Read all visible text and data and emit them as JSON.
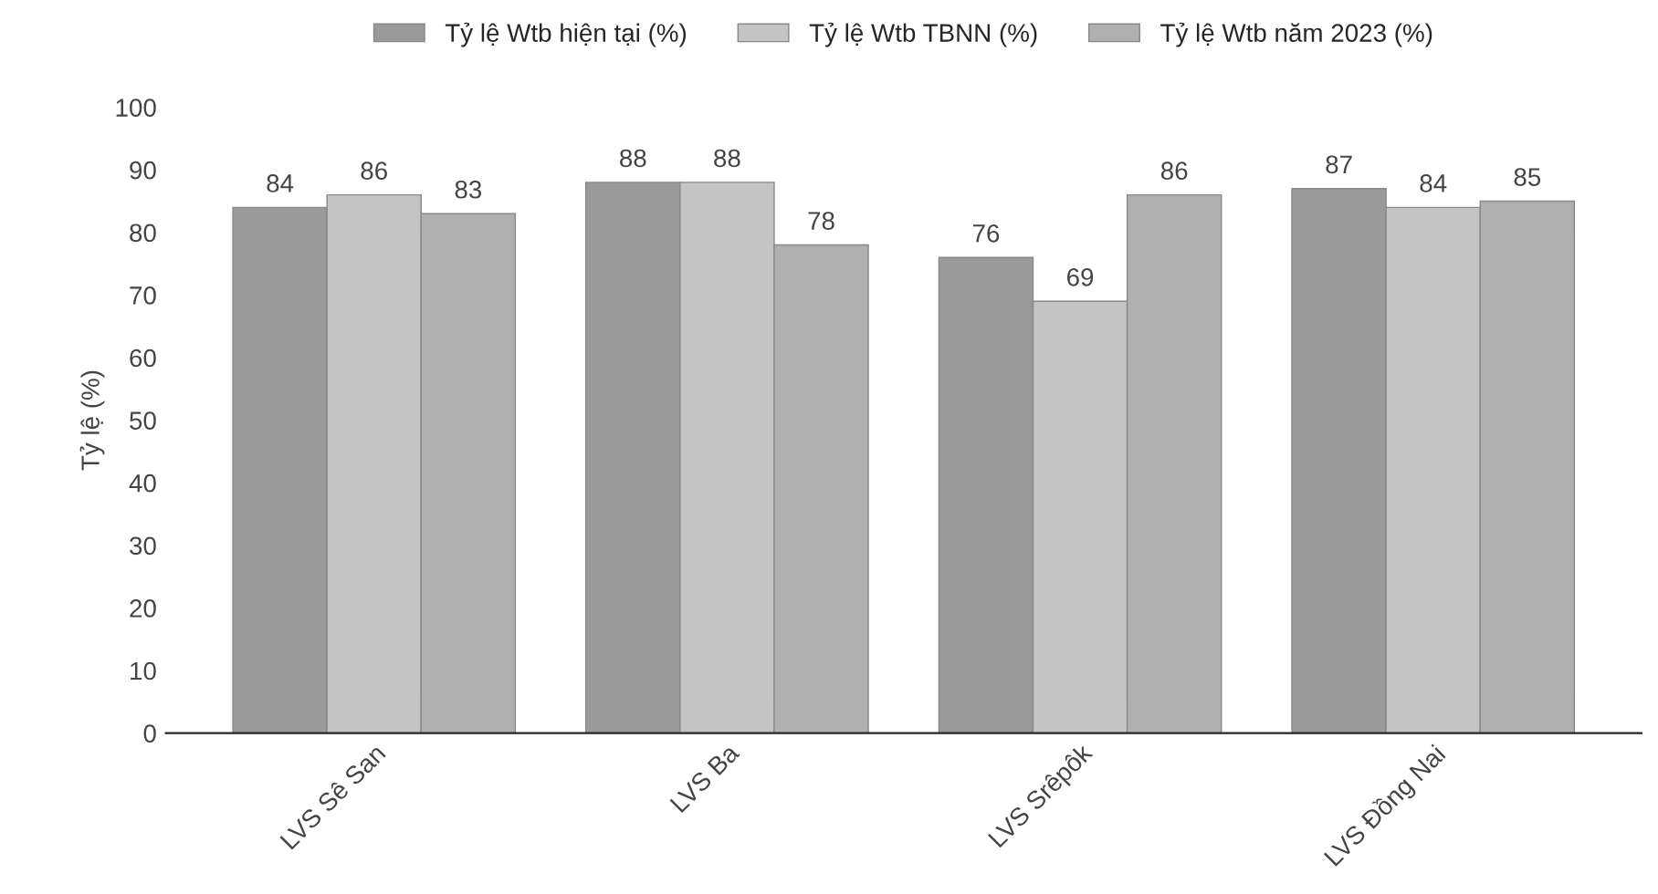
{
  "chart_data": {
    "type": "bar",
    "ylabel": "Tỷ lệ (%)",
    "categories": [
      "LVS Sê San",
      "LVS Ba",
      "LVS Srêpôk",
      "LVS Đồng Nai"
    ],
    "series": [
      {
        "name": "Tỷ lệ Wtb hiện tại (%)",
        "color": "#9a9a9a",
        "values": [
          84,
          88,
          76,
          87
        ]
      },
      {
        "name": "Tỷ lệ Wtb TBNN (%)",
        "color": "#c4c4c4",
        "values": [
          86,
          88,
          69,
          84
        ]
      },
      {
        "name": "Tỷ lệ Wtb năm 2023 (%)",
        "color": "#b0b0b0",
        "values": [
          83,
          78,
          86,
          85
        ]
      }
    ],
    "ylim": [
      0,
      100
    ],
    "yticks": [
      0,
      10,
      20,
      30,
      40,
      50,
      60,
      70,
      80,
      90,
      100
    ],
    "grid": false,
    "legend": "top",
    "data_labels": true
  }
}
